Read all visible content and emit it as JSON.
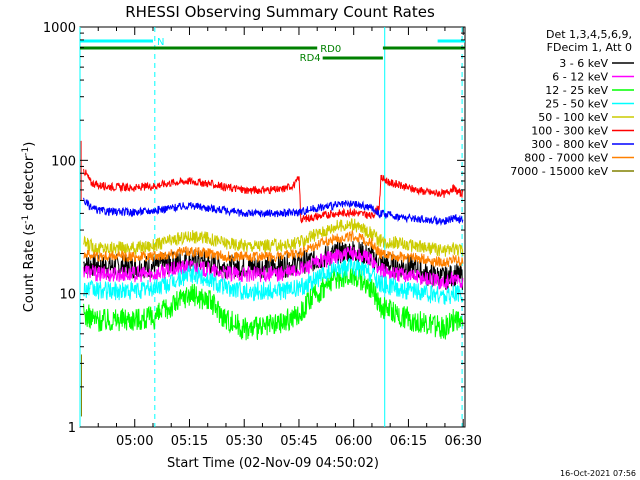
{
  "chart_data": {
    "type": "line",
    "title": "RHESSI Observing Summary Count Rates",
    "xlabel": "Start Time (02-Nov-09 04:50:02)",
    "ylabel_parts": [
      "Count Rate (s",
      "-1",
      " detector",
      "-1",
      ")"
    ],
    "ylim": [
      1,
      1000
    ],
    "yscale": "log",
    "xlim_minutes": [
      285,
      390.5
    ],
    "x_ticks": [
      {
        "t": 300,
        "label": "05:00"
      },
      {
        "t": 315,
        "label": "05:15"
      },
      {
        "t": 330,
        "label": "05:30"
      },
      {
        "t": 345,
        "label": "05:45"
      },
      {
        "t": 360,
        "label": "06:00"
      },
      {
        "t": 375,
        "label": "06:15"
      },
      {
        "t": 390,
        "label": "06:30"
      }
    ],
    "y_ticks": [
      {
        "v": 1,
        "label": "1"
      },
      {
        "v": 10,
        "label": "10"
      },
      {
        "v": 100,
        "label": "100"
      },
      {
        "v": 1000,
        "label": "1000"
      }
    ],
    "legend_header": [
      "Det 1,3,4,5,6,9,",
      "FDecim 1, Att 0"
    ],
    "series": [
      {
        "name": "3 - 6 keV",
        "color": "#000000",
        "times": [
          286,
          290,
          300,
          305,
          310,
          315,
          320,
          325,
          330,
          335,
          340,
          345,
          350,
          355,
          360,
          365,
          367,
          372,
          375,
          380,
          385,
          388,
          390
        ],
        "values": [
          17,
          16,
          16,
          16,
          17,
          18,
          17,
          16,
          16,
          16,
          16,
          17,
          18,
          20,
          21,
          19,
          17,
          16,
          16,
          14,
          13,
          14,
          13
        ]
      },
      {
        "name": "6 - 12 keV",
        "color": "#ff00ff",
        "times": [
          286,
          290,
          300,
          305,
          310,
          315,
          320,
          325,
          330,
          335,
          340,
          345,
          350,
          355,
          360,
          365,
          367,
          372,
          375,
          380,
          385,
          388,
          390
        ],
        "values": [
          15,
          14,
          14,
          14,
          15,
          16,
          15,
          14,
          14,
          14,
          14,
          15,
          17,
          19,
          20,
          18,
          15,
          14,
          14,
          13,
          12,
          13,
          12
        ]
      },
      {
        "name": "12 - 25 keV",
        "color": "#00ff00",
        "times": [
          286,
          290,
          300,
          305,
          310,
          315,
          320,
          325,
          330,
          335,
          340,
          345,
          350,
          355,
          360,
          365,
          367,
          372,
          375,
          380,
          385,
          388,
          390
        ],
        "values": [
          7,
          6.3,
          6.5,
          6.5,
          8,
          10,
          9,
          6.5,
          5.5,
          5.5,
          6,
          7,
          10,
          13,
          14,
          11,
          8,
          7,
          6.5,
          6,
          5.5,
          6.5,
          5.5
        ]
      },
      {
        "name": "25 - 50 keV",
        "color": "#00ffff",
        "times": [
          286,
          290,
          300,
          305,
          310,
          315,
          320,
          325,
          330,
          335,
          340,
          345,
          350,
          355,
          360,
          365,
          367,
          372,
          375,
          380,
          385,
          388,
          390
        ],
        "values": [
          11,
          10.5,
          10.5,
          11,
          12,
          14,
          13,
          11,
          10.5,
          10.5,
          10.5,
          11,
          13,
          15,
          16,
          14,
          12,
          11,
          10.5,
          10,
          9.5,
          10,
          9.5
        ]
      },
      {
        "name": "50 - 100 keV",
        "color": "#cccc00",
        "times": [
          286,
          290,
          300,
          305,
          310,
          315,
          320,
          325,
          330,
          335,
          340,
          345,
          350,
          355,
          360,
          365,
          367,
          372,
          375,
          380,
          385,
          388,
          390
        ],
        "values": [
          24,
          22,
          22,
          23,
          25,
          27,
          26,
          24,
          23,
          23,
          23,
          24,
          28,
          32,
          33,
          28,
          25,
          24,
          23,
          22,
          21,
          22,
          21
        ]
      },
      {
        "name": "100 - 300 keV",
        "color": "#ff0000",
        "times": [
          286,
          288,
          290,
          295,
          300,
          305,
          310,
          315,
          320,
          325,
          330,
          335,
          340,
          344,
          345,
          345.5,
          350,
          355,
          360,
          365,
          367,
          367.5,
          370,
          375,
          380,
          385,
          387,
          390
        ],
        "values": [
          85,
          68,
          65,
          63,
          62,
          64,
          68,
          70,
          67,
          63,
          60,
          60,
          60,
          66,
          75,
          36,
          38,
          40,
          41,
          38,
          45,
          74,
          68,
          62,
          58,
          56,
          62,
          55
        ]
      },
      {
        "name": "300 - 800 keV",
        "color": "#0000ff",
        "times": [
          286,
          288,
          290,
          295,
          300,
          305,
          310,
          315,
          320,
          325,
          330,
          335,
          340,
          345,
          350,
          355,
          360,
          365,
          367,
          372,
          375,
          380,
          385,
          388,
          390
        ],
        "values": [
          50,
          44,
          42,
          41,
          41,
          42,
          44,
          46,
          44,
          42,
          40,
          40,
          40,
          41,
          44,
          46,
          47,
          44,
          40,
          38,
          37,
          36,
          35,
          37,
          35
        ]
      },
      {
        "name": "800 - 7000 keV",
        "color": "#ff8000",
        "times": [
          286,
          290,
          300,
          305,
          310,
          315,
          320,
          325,
          330,
          335,
          340,
          345,
          350,
          355,
          360,
          365,
          367,
          372,
          375,
          380,
          385,
          388,
          390
        ],
        "values": [
          20,
          19,
          19,
          19,
          20,
          21,
          20,
          19,
          19,
          19,
          19,
          20,
          23,
          26,
          27,
          24,
          20,
          19,
          19,
          18,
          17,
          18,
          17
        ]
      },
      {
        "name": "7000 - 15000 keV",
        "color": "#808000",
        "times": [],
        "values": []
      }
    ],
    "annotations": [
      {
        "label": "N",
        "color": "#00ffff",
        "segments": [
          [
            285,
            305
          ],
          [
            383,
            390.5
          ]
        ]
      },
      {
        "label": "RD0",
        "color": "#008000",
        "segments": [
          [
            285,
            350
          ],
          [
            368,
            390.5
          ]
        ]
      },
      {
        "label": "RD4",
        "color": "#008000",
        "segments": [
          [
            351.5,
            368
          ]
        ]
      }
    ],
    "vertical_markers": [
      {
        "t": 285,
        "color": "#00ffff",
        "style": "solid"
      },
      {
        "t": 305.5,
        "color": "#00ffff",
        "style": "dashed"
      },
      {
        "t": 368.5,
        "color": "#00ffff",
        "style": "solid"
      },
      {
        "t": 389.7,
        "color": "#00ffff",
        "style": "dashed"
      }
    ],
    "footer": "16-Oct-2021 07:56"
  }
}
